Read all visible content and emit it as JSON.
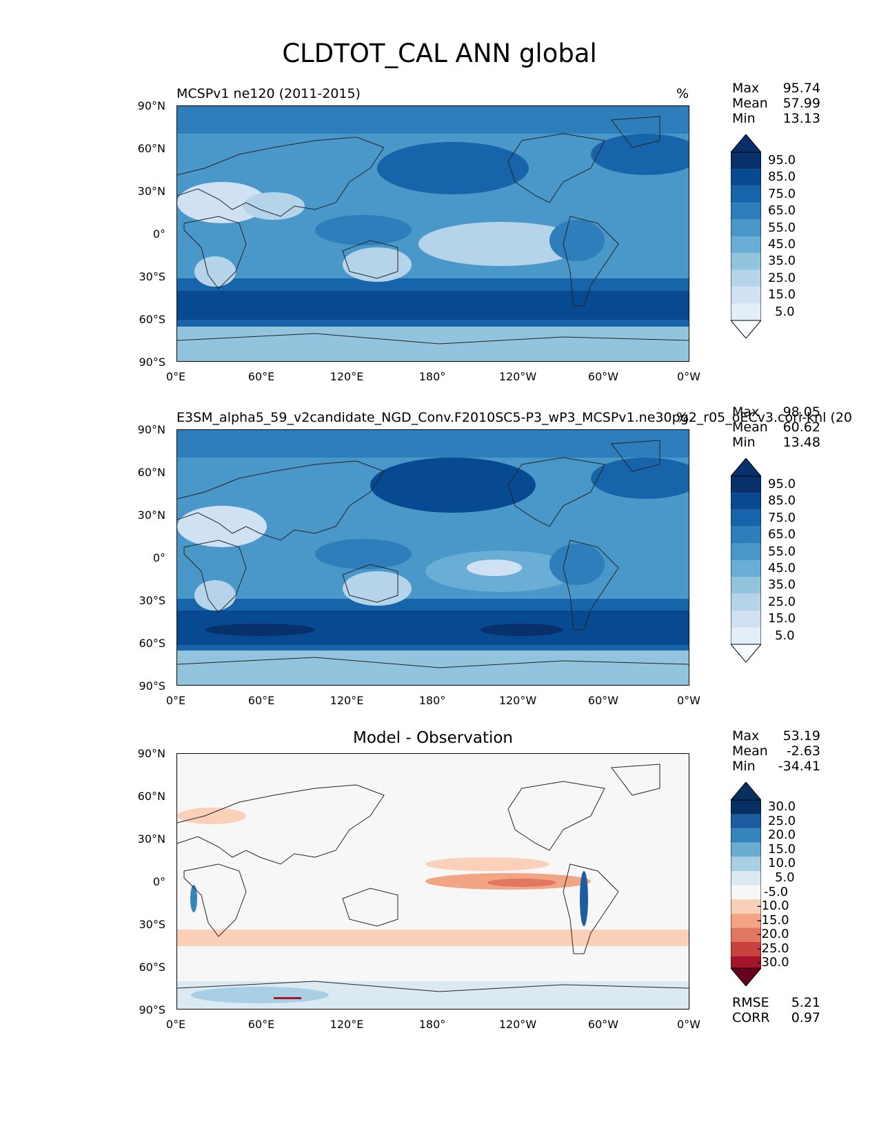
{
  "figure": {
    "suptitle": "CLDTOT_CAL ANN global"
  },
  "axes": {
    "lat_labels": [
      "90°N",
      "60°N",
      "30°N",
      "0°",
      "30°S",
      "60°S",
      "90°S"
    ],
    "lon_labels": [
      "0°E",
      "60°E",
      "120°E",
      "180°",
      "120°W",
      "60°W",
      "0°W"
    ]
  },
  "panels": {
    "test": {
      "title_left": "MCSPv1 ne120 (2011-2015)",
      "title_right": "%",
      "stats": {
        "max_label": "Max",
        "max": "95.74",
        "mean_label": "Mean",
        "mean": "57.99",
        "min_label": "Min",
        "min": "13.13"
      },
      "colorbar_labels": [
        "95.0",
        "85.0",
        "75.0",
        "65.0",
        "55.0",
        "45.0",
        "35.0",
        "25.0",
        "15.0",
        "5.0"
      ]
    },
    "ref": {
      "title_left": "E3SM_alpha5_59_v2candidate_NGD_Conv.F2010SC5-P3_wP3_MCSPv1.ne30pg2_r05_oECv3.cori-knl (20",
      "title_right": "%",
      "stats": {
        "max_label": "Max",
        "max": "98.05",
        "mean_label": "Mean",
        "mean": "60.62",
        "min_label": "Min",
        "min": "13.48"
      },
      "colorbar_labels": [
        "95.0",
        "85.0",
        "75.0",
        "65.0",
        "55.0",
        "45.0",
        "35.0",
        "25.0",
        "15.0",
        "5.0"
      ]
    },
    "diff": {
      "title_center": "Model - Observation",
      "stats": {
        "max_label": "Max",
        "max": "53.19",
        "mean_label": "Mean",
        "mean": "-2.63",
        "min_label": "Min",
        "min": "-34.41"
      },
      "colorbar_labels": [
        "30.0",
        "25.0",
        "20.0",
        "15.0",
        "10.0",
        "5.0",
        "-5.0",
        "-10.0",
        "-15.0",
        "-20.0",
        "-25.0",
        "-30.0"
      ],
      "metrics": {
        "rmse_label": "RMSE",
        "rmse": "5.21",
        "corr_label": "CORR",
        "corr": "0.97"
      }
    }
  },
  "colors": {
    "blues": [
      "#f7fbff",
      "#e3eef9",
      "#cfe1f2",
      "#b5d4e9",
      "#93c4de",
      "#6aaed6",
      "#4a98c9",
      "#2e7ebc",
      "#1764ab",
      "#084a91",
      "#08306b"
    ],
    "rdbu": [
      "#67001f",
      "#a51429",
      "#c9413f",
      "#e17760",
      "#f2a585",
      "#fbd0b9",
      "#f7f7f7",
      "#dbeaf2",
      "#a9cfe5",
      "#6aacd0",
      "#3585bc",
      "#1c5c9f",
      "#053061"
    ]
  },
  "chart_data": [
    {
      "type": "heatmap",
      "title": "MCSPv1 ne120 (2011-2015)",
      "units": "%",
      "xlim": [
        0,
        360
      ],
      "ylim": [
        -90,
        90
      ],
      "levels": [
        5,
        15,
        25,
        35,
        45,
        55,
        65,
        75,
        85,
        95
      ],
      "stats": {
        "max": 95.74,
        "mean": 57.99,
        "min": 13.13
      }
    },
    {
      "type": "heatmap",
      "title": "E3SM_alpha5_59_v2candidate_NGD_Conv.F2010SC5-P3_wP3_MCSPv1.ne30pg2_r05_oECv3.cori-knl",
      "units": "%",
      "xlim": [
        0,
        360
      ],
      "ylim": [
        -90,
        90
      ],
      "levels": [
        5,
        15,
        25,
        35,
        45,
        55,
        65,
        75,
        85,
        95
      ],
      "stats": {
        "max": 98.05,
        "mean": 60.62,
        "min": 13.48
      }
    },
    {
      "type": "heatmap",
      "title": "Model - Observation",
      "xlim": [
        0,
        360
      ],
      "ylim": [
        -90,
        90
      ],
      "levels": [
        -30,
        -25,
        -20,
        -15,
        -10,
        -5,
        5,
        10,
        15,
        20,
        25,
        30
      ],
      "stats": {
        "max": 53.19,
        "mean": -2.63,
        "min": -34.41,
        "rmse": 5.21,
        "corr": 0.97
      }
    }
  ]
}
